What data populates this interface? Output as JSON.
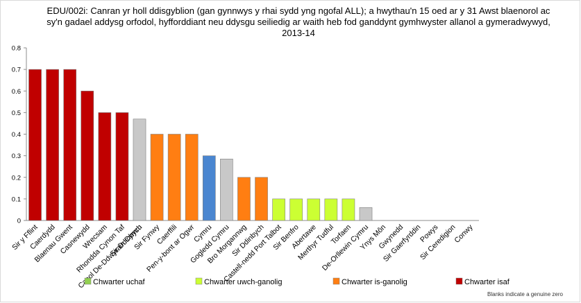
{
  "chart_data": {
    "type": "bar",
    "title": "EDU/002i: Canran yr holl ddisgyblion (gan gynnwys y rhai sydd yng ngofal ALL); a hwythau'n 15 oed ar y 31 Awst blaenorol ac sy'n gadael addysg orfodol, hyfforddiant neu ddysgu seiliedig ar waith heb fod ganddynt gymhwyster allanol a gymeradwywyd, 2013-14",
    "xlabel": "",
    "ylabel": "",
    "ylim": [
      0,
      0.8
    ],
    "yticks": [
      "0",
      "0.1",
      "0.2",
      "0.3",
      "0.4",
      "0.5",
      "0.6",
      "0.7",
      "0.8"
    ],
    "categories": [
      "Sir y Fflint",
      "Caerdydd",
      "Blaenau Gwent",
      "Casnewydd",
      "Wrecsam",
      "Rhondda Cynon Taf",
      "Sir Ddinbych",
      "Sir Fynwy",
      "Caerffili",
      "Pen-y-bont ar Ogwr",
      "Cymru",
      "Gogledd Cymru",
      "Bro Morgannwg",
      "Sir Ddinbych",
      "Castell-nedd Port Talbot",
      "Sir Benfro",
      "Abertawe",
      "Merthyr Tudful",
      "Torfaen",
      "De-Orllewin Cymru",
      "Ynys Môn",
      "Gwynedd",
      "Sir Gaerfyrddin",
      "Powys",
      "Sir Ceredigion",
      "Conwy"
    ],
    "category_labels_overlap": [
      "",
      "",
      "",
      "",
      "",
      "",
      "Canol De-Ddwyrain Cymru",
      "",
      "",
      "",
      "",
      "",
      "",
      "",
      "",
      "",
      "",
      "",
      "",
      "",
      "",
      "",
      "",
      "",
      "",
      ""
    ],
    "values": [
      0.7,
      0.7,
      0.7,
      0.6,
      0.5,
      0.5,
      0.47,
      0.4,
      0.4,
      0.4,
      0.3,
      0.285,
      0.2,
      0.2,
      0.1,
      0.1,
      0.1,
      0.1,
      0.1,
      0.06,
      0,
      0,
      0,
      0,
      0,
      0
    ],
    "bar_groups": [
      "isaf",
      "isaf",
      "isaf",
      "isaf",
      "isaf",
      "isaf",
      "region",
      "is-ganolig",
      "is-ganolig",
      "is-ganolig",
      "wales",
      "region",
      "is-ganolig",
      "is-ganolig",
      "uwch-ganolig",
      "uwch-ganolig",
      "uwch-ganolig",
      "uwch-ganolig",
      "uwch-ganolig",
      "region",
      "uchaf",
      "uchaf",
      "uchaf",
      "uchaf",
      "uchaf",
      "uchaf"
    ],
    "colors": {
      "uchaf": "#92d050",
      "uwch-ganolig": "#ccff33",
      "is-ganolig": "#ff7e12",
      "isaf": "#c00000",
      "region": "#c8c8c8",
      "wales": "#4a86d0"
    },
    "legend": [
      {
        "name": "Chwarter uchaf",
        "group": "uchaf"
      },
      {
        "name": "Chwarter uwch-ganolig",
        "group": "uwch-ganolig"
      },
      {
        "name": "Chwarter is-ganolig",
        "group": "is-ganolig"
      },
      {
        "name": "Chwarter isaf",
        "group": "isaf"
      }
    ],
    "legend_position": "bottom",
    "grid": false
  },
  "note": "Blanks indicate a genuine zero"
}
